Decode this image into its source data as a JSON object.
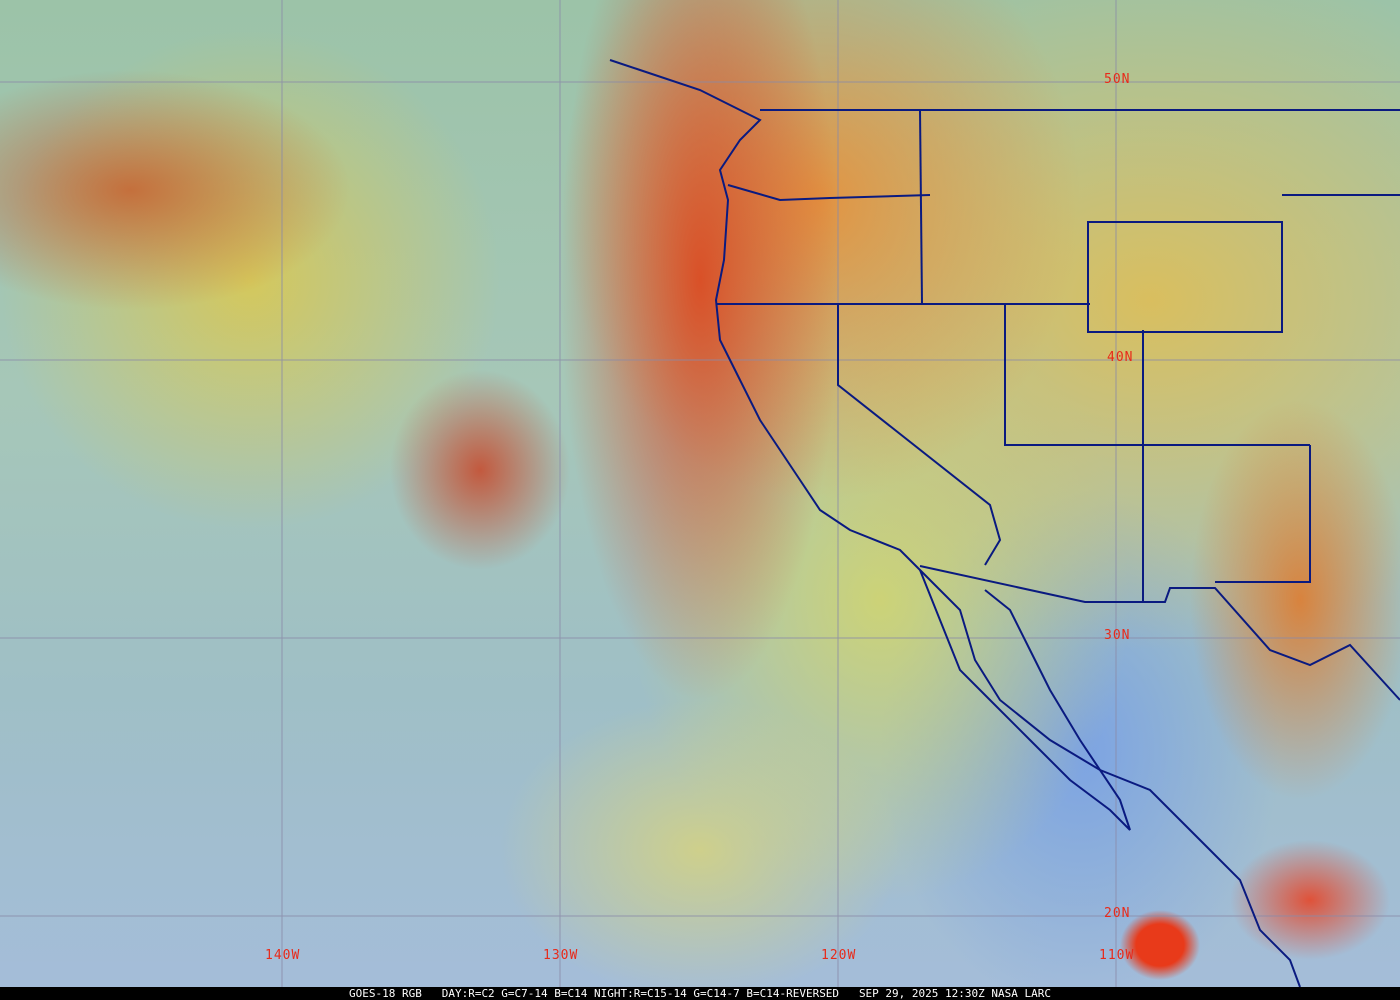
{
  "map": {
    "latitude_labels": [
      "50N",
      "40N",
      "30N",
      "20N"
    ],
    "longitude_labels": [
      "140W",
      "130W",
      "120W",
      "110W"
    ],
    "colors": {
      "label": "#e82a1a",
      "borders": "#0a1a80",
      "grid": "#8a8aa8"
    }
  },
  "caption": {
    "satellite": "GOES-18 RGB",
    "recipe": "DAY:R=C2 G=C7-14 B=C14 NIGHT:R=C15-14 G=C14-7 B=C14-REVERSED",
    "timestamp": "SEP 29, 2025 12:30Z",
    "credit": "NASA LARC"
  }
}
